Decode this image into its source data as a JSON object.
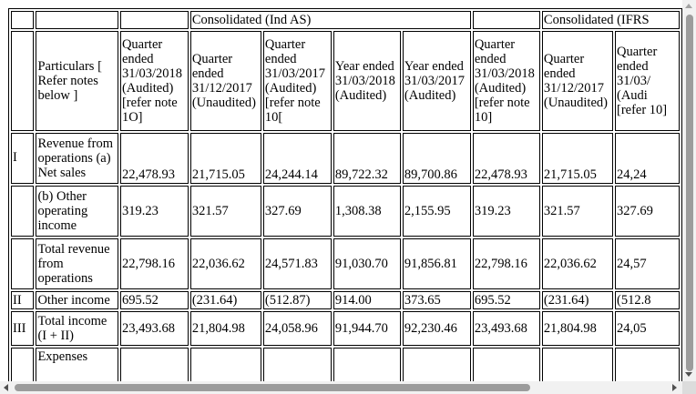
{
  "table": {
    "header_row1": {
      "consolidated_ind_as": "Consolidated (Ind AS)",
      "consolidated_ifrs": "Consolidated (IFRS"
    },
    "header_row2": {
      "particulars": "Particulars [ Refer notes below ]",
      "col1": "Quarter ended 31/03/2018 (Audited) [refer note 1O]",
      "col2": "Quarter ended 31/12/2017 (Unaudited)",
      "col3": "Quarter ended 31/03/2017 (Audited) [refer note 10[",
      "col4": "Year ended 31/03/2018 (Audited)",
      "col5": "Year ended 31/03/2017 (Audited)",
      "col6": "Quarter ended 31/03/2018 (Audited) [refer note 10]",
      "col7": "Quarter ended 31/12/2017 (Unaudited)",
      "col8": "Quarter ended 31/03/ (Audi [refer 10]"
    },
    "rows": [
      {
        "index": "I",
        "particular": "Revenue from operations (a) Net sales",
        "values": [
          "22,478.93",
          "21,715.05",
          "24,244.14",
          "89,722.32",
          "89,700.86",
          "22,478.93",
          "21,715.05",
          "24,24"
        ]
      },
      {
        "index": "",
        "particular": "(b) Other operating income",
        "values": [
          "319.23",
          "321.57",
          "327.69",
          "1,308.38",
          "2,155.95",
          "319.23",
          "321.57",
          "327.69"
        ]
      },
      {
        "index": "",
        "particular": "Total revenue from operations",
        "values": [
          "22,798.16",
          "22,036.62",
          "24,571.83",
          "91,030.70",
          "91,856.81",
          "22,798.16",
          "22,036.62",
          "24,57"
        ]
      },
      {
        "index": "II",
        "particular": "Other income",
        "values": [
          "695.52",
          "(231.64)",
          "(512.87)",
          "914.00",
          "373.65",
          "695.52",
          "(231.64)",
          "(512.8"
        ]
      },
      {
        "index": "III",
        "particular": "Total income (I + II)",
        "values": [
          "23,493.68",
          "21,804.98",
          "24,058.96",
          "91,944.70",
          "92,230.46",
          "23,493.68",
          "21,804.98",
          "24,05"
        ]
      },
      {
        "index": "",
        "particular": "Expenses",
        "values": [
          "",
          "",
          "",
          "",
          "",
          "",
          "",
          ""
        ]
      }
    ]
  }
}
